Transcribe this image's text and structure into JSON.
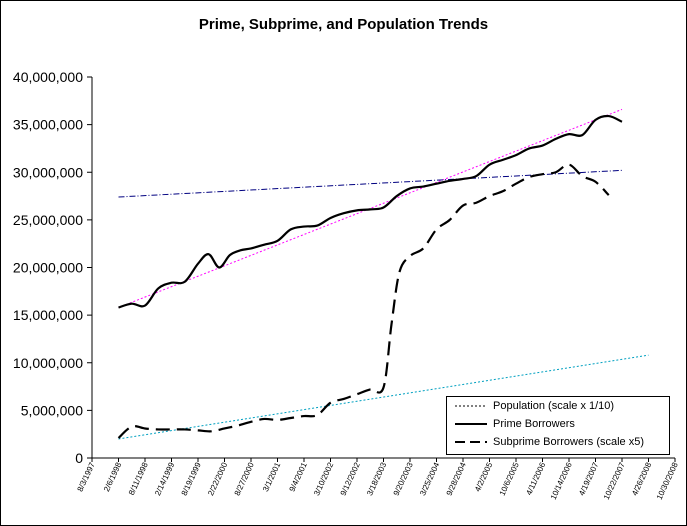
{
  "chart_data": {
    "type": "line",
    "title": "Prime, Subprime, and Population Trends",
    "xlabel": "",
    "ylabel": "",
    "ylim": [
      0,
      40000000
    ],
    "y_ticks": [
      "0",
      "5,000,000",
      "10,000,000",
      "15,000,000",
      "20,000,000",
      "25,000,000",
      "30,000,000",
      "35,000,000",
      "40,000,000"
    ],
    "x_ticks": [
      "8/3/1997",
      "2/6/1998",
      "8/11/1998",
      "2/14/1999",
      "8/19/1999",
      "2/22/2000",
      "8/27/2000",
      "3/1/2001",
      "9/4/2001",
      "3/10/2002",
      "9/12/2002",
      "3/18/2003",
      "9/20/2003",
      "3/25/2004",
      "9/28/2004",
      "4/2/2005",
      "10/6/2005",
      "4/11/2006",
      "10/14/2006",
      "4/19/2007",
      "10/22/2007",
      "4/26/2008",
      "10/30/2008"
    ],
    "series": [
      {
        "name": "Population (scale x 1/10)",
        "values": [
          [
            1,
            2000000
          ],
          [
            21,
            10800000
          ]
        ]
      },
      {
        "name": "Prime Borrowers",
        "values": [
          [
            1,
            15800000
          ],
          [
            1.5,
            16200000
          ],
          [
            2,
            16000000
          ],
          [
            2.5,
            17800000
          ],
          [
            3,
            18400000
          ],
          [
            3.5,
            18500000
          ],
          [
            4,
            20400000
          ],
          [
            4.4,
            21400000
          ],
          [
            4.8,
            20000000
          ],
          [
            5.2,
            21300000
          ],
          [
            5.6,
            21800000
          ],
          [
            6,
            22000000
          ],
          [
            6.5,
            22400000
          ],
          [
            7,
            22800000
          ],
          [
            7.5,
            24000000
          ],
          [
            8,
            24300000
          ],
          [
            8.5,
            24400000
          ],
          [
            9,
            25200000
          ],
          [
            9.5,
            25700000
          ],
          [
            10,
            26000000
          ],
          [
            10.5,
            26100000
          ],
          [
            11,
            26300000
          ],
          [
            11.5,
            27500000
          ],
          [
            12,
            28300000
          ],
          [
            12.5,
            28500000
          ],
          [
            13,
            28800000
          ],
          [
            13.5,
            29100000
          ],
          [
            14,
            29300000
          ],
          [
            14.5,
            29600000
          ],
          [
            15,
            30800000
          ],
          [
            15.5,
            31300000
          ],
          [
            16,
            31800000
          ],
          [
            16.5,
            32500000
          ],
          [
            17,
            32800000
          ],
          [
            17.5,
            33500000
          ],
          [
            18,
            34000000
          ],
          [
            18.5,
            33900000
          ],
          [
            19,
            35500000
          ],
          [
            19.5,
            35900000
          ],
          [
            20,
            35300000
          ]
        ]
      },
      {
        "name": "Subprime Borrowers (scale x5)",
        "values": [
          [
            1,
            2100000
          ],
          [
            1.5,
            3300000
          ],
          [
            2,
            3100000
          ],
          [
            2.5,
            3000000
          ],
          [
            3,
            3000000
          ],
          [
            3.5,
            3000000
          ],
          [
            4,
            2900000
          ],
          [
            4.5,
            2800000
          ],
          [
            5,
            3100000
          ],
          [
            5.5,
            3400000
          ],
          [
            6,
            3800000
          ],
          [
            6.5,
            4100000
          ],
          [
            7,
            4000000
          ],
          [
            7.5,
            4200000
          ],
          [
            8,
            4400000
          ],
          [
            8.5,
            4500000
          ],
          [
            9,
            5800000
          ],
          [
            9.5,
            6200000
          ],
          [
            10,
            6700000
          ],
          [
            10.5,
            7200000
          ],
          [
            11,
            7400000
          ],
          [
            11.3,
            14000000
          ],
          [
            11.6,
            19500000
          ],
          [
            12,
            21200000
          ],
          [
            12.5,
            22000000
          ],
          [
            13,
            24000000
          ],
          [
            13.5,
            25000000
          ],
          [
            14,
            26500000
          ],
          [
            14.5,
            26800000
          ],
          [
            15,
            27500000
          ],
          [
            15.5,
            28000000
          ],
          [
            16,
            28800000
          ],
          [
            16.5,
            29500000
          ],
          [
            17,
            29800000
          ],
          [
            17.5,
            30000000
          ],
          [
            18,
            30800000
          ],
          [
            18.5,
            29600000
          ],
          [
            19,
            29000000
          ],
          [
            19.5,
            27600000
          ]
        ]
      },
      {
        "values": [
          [
            1,
            15800000
          ],
          [
            20,
            36600000
          ]
        ]
      },
      {
        "values": [
          [
            1,
            27400000
          ],
          [
            20,
            30200000
          ]
        ]
      }
    ],
    "legend": {
      "position": "bottom-right",
      "entries": [
        "Population (scale x  1/10)",
        "Prime Borrowers",
        "Subprime Borrowers (scale x5)"
      ]
    },
    "grid": false
  },
  "colors": {
    "population": "#00a0c0",
    "prime": "#000000",
    "subprime": "#000000",
    "prime_trend": "#ff00ff",
    "flat_trend": "#000080"
  }
}
